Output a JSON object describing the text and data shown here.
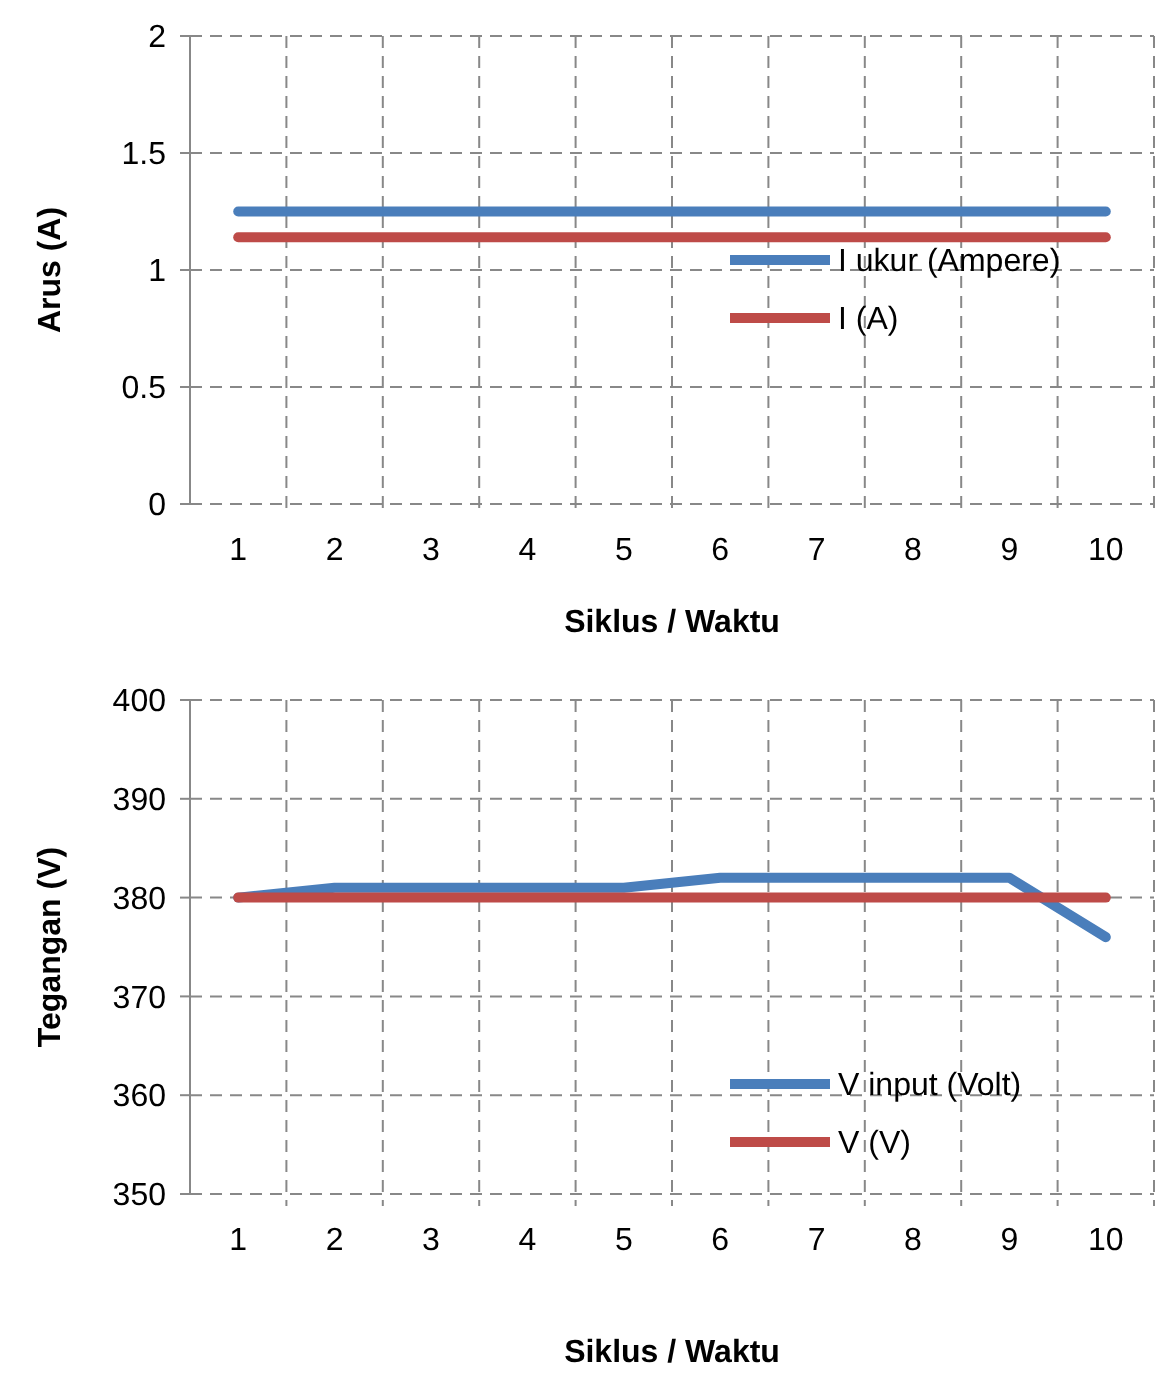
{
  "chart_data": [
    {
      "type": "line",
      "categories": [
        "1",
        "2",
        "3",
        "4",
        "5",
        "6",
        "7",
        "8",
        "9",
        "10"
      ],
      "xlabel": "Siklus / Waktu",
      "ylabel": "Arus (A)",
      "ylim": [
        0,
        2
      ],
      "yticks": [
        0,
        0.5,
        1,
        1.5,
        2
      ],
      "grid": true,
      "legend": "right",
      "marker": "none",
      "series": [
        {
          "name": "I ukur (Ampere)",
          "color": "#4a7ebb",
          "values": [
            1.25,
            1.25,
            1.25,
            1.25,
            1.25,
            1.25,
            1.25,
            1.25,
            1.25,
            1.25
          ]
        },
        {
          "name": "I (A)",
          "color": "#be4b48",
          "values": [
            1.14,
            1.14,
            1.14,
            1.14,
            1.14,
            1.14,
            1.14,
            1.14,
            1.14,
            1.14
          ]
        }
      ]
    },
    {
      "type": "line",
      "categories": [
        "1",
        "2",
        "3",
        "4",
        "5",
        "6",
        "7",
        "8",
        "9",
        "10"
      ],
      "xlabel": "Siklus / Waktu",
      "ylabel": "Tegangan (V)",
      "ylim": [
        350,
        400
      ],
      "yticks": [
        350,
        360,
        370,
        380,
        390,
        400
      ],
      "grid": true,
      "legend": "bottom right",
      "marker": "none",
      "series": [
        {
          "name": "V input (Volt)",
          "color": "#4a7ebb",
          "values": [
            380,
            381,
            381,
            381,
            381,
            382,
            382,
            382,
            382,
            376
          ]
        },
        {
          "name": "V (V)",
          "color": "#be4b48",
          "values": [
            380,
            380,
            380,
            380,
            380,
            380,
            380,
            380,
            380,
            380
          ]
        }
      ]
    }
  ]
}
